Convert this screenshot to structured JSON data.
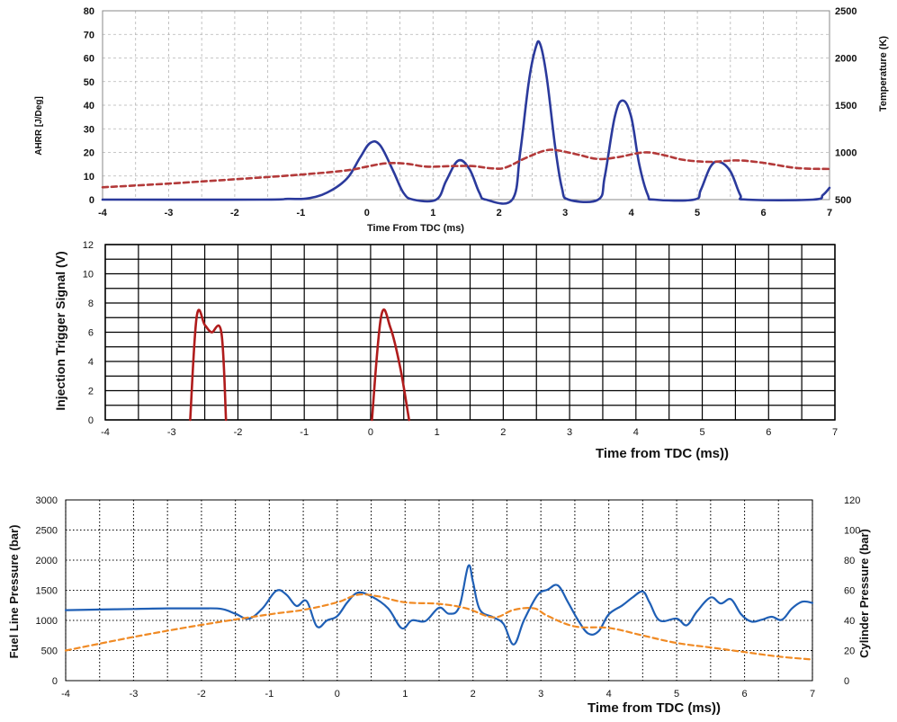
{
  "chart_data": [
    {
      "type": "line",
      "title": "",
      "xlabel": "Time From TDC  (ms)",
      "ylabel": "AHRR  [J/Deg]",
      "y2label": "Temperature (K)",
      "xlim": [
        -4,
        7
      ],
      "ylim": [
        0,
        80
      ],
      "y2lim": [
        500,
        2500
      ],
      "xticks": [
        "-4",
        "-3",
        "-2",
        "-1",
        "0",
        "1",
        "2",
        "3",
        "4",
        "5",
        "6",
        "7"
      ],
      "yticks": [
        "0",
        "10",
        "20",
        "30",
        "40",
        "50",
        "60",
        "70",
        "80"
      ],
      "y2ticks": [
        "500",
        "1000",
        "1500",
        "2000",
        "2500"
      ],
      "grid": "dashed",
      "series": [
        {
          "axis": "left",
          "color": "#2b3a9c",
          "style": "solid",
          "points": [
            [
              -4,
              0
            ],
            [
              -1.6,
              0
            ],
            [
              -1.2,
              0.3
            ],
            [
              -0.9,
              0.5
            ],
            [
              -0.6,
              3
            ],
            [
              -0.3,
              9
            ],
            [
              -0.1,
              18
            ],
            [
              0.05,
              24
            ],
            [
              0.2,
              23
            ],
            [
              0.4,
              12
            ],
            [
              0.55,
              3
            ],
            [
              0.7,
              0
            ],
            [
              1.05,
              0
            ],
            [
              1.2,
              8
            ],
            [
              1.38,
              16.5
            ],
            [
              1.55,
              13
            ],
            [
              1.7,
              3
            ],
            [
              1.8,
              0
            ],
            [
              2.2,
              0
            ],
            [
              2.32,
              20
            ],
            [
              2.45,
              50
            ],
            [
              2.55,
              64
            ],
            [
              2.62,
              66
            ],
            [
              2.72,
              52
            ],
            [
              2.85,
              22
            ],
            [
              2.95,
              5
            ],
            [
              3.05,
              0
            ],
            [
              3.5,
              0
            ],
            [
              3.6,
              10
            ],
            [
              3.75,
              35
            ],
            [
              3.87,
              42
            ],
            [
              4.0,
              35
            ],
            [
              4.12,
              15
            ],
            [
              4.25,
              2
            ],
            [
              4.35,
              0
            ],
            [
              4.95,
              0
            ],
            [
              5.05,
              4
            ],
            [
              5.2,
              14
            ],
            [
              5.33,
              16
            ],
            [
              5.5,
              12
            ],
            [
              5.65,
              2
            ],
            [
              5.75,
              0
            ],
            [
              6.75,
              0
            ],
            [
              6.9,
              2
            ],
            [
              7,
              5
            ]
          ]
        },
        {
          "axis": "right",
          "color": "#b33a3a",
          "style": "dashed",
          "points": [
            [
              -4,
              630
            ],
            [
              -3,
              670
            ],
            [
              -2,
              715
            ],
            [
              -1,
              765
            ],
            [
              -0.3,
              810
            ],
            [
              0,
              850
            ],
            [
              0.3,
              885
            ],
            [
              0.6,
              880
            ],
            [
              0.9,
              850
            ],
            [
              1.3,
              855
            ],
            [
              1.6,
              855
            ],
            [
              1.9,
              830
            ],
            [
              2.1,
              840
            ],
            [
              2.4,
              940
            ],
            [
              2.7,
              1020
            ],
            [
              2.9,
              1020
            ],
            [
              3.2,
              975
            ],
            [
              3.5,
              930
            ],
            [
              3.8,
              950
            ],
            [
              4.2,
              1000
            ],
            [
              4.5,
              970
            ],
            [
              4.8,
              920
            ],
            [
              5.2,
              900
            ],
            [
              5.6,
              915
            ],
            [
              6.0,
              890
            ],
            [
              6.5,
              835
            ],
            [
              7,
              825
            ]
          ]
        }
      ]
    },
    {
      "type": "line",
      "title": "",
      "xlabel": "Time from TDC  (ms))",
      "ylabel": "Injection Trigger Signal (V)",
      "xlim": [
        -4,
        7
      ],
      "ylim": [
        0,
        12
      ],
      "xticks": [
        "-4",
        "-3",
        "-2",
        "-1",
        "0",
        "1",
        "2",
        "3",
        "4",
        "5",
        "6",
        "7"
      ],
      "yticks": [
        "0",
        "2",
        "4",
        "6",
        "8",
        "10",
        "12"
      ],
      "grid": "solid",
      "series": [
        {
          "color": "#b01c1c",
          "style": "solid",
          "points": [
            [
              -2.72,
              0
            ],
            [
              -2.62,
              7.1
            ],
            [
              -2.5,
              6.5
            ],
            [
              -2.4,
              6.0
            ],
            [
              -2.25,
              6.0
            ],
            [
              -2.18,
              0
            ]
          ]
        },
        {
          "color": "#b01c1c",
          "style": "solid",
          "points": [
            [
              0.02,
              0
            ],
            [
              0.16,
              7.1
            ],
            [
              0.3,
              6.3
            ],
            [
              0.45,
              3.5
            ],
            [
              0.58,
              0
            ]
          ]
        }
      ]
    },
    {
      "type": "line",
      "title": "",
      "xlabel": "Time from TDC  (ms))",
      "ylabel": "Fuel Line Pressure  (bar)",
      "y2label": "Cylinder Pressure  (bar)",
      "xlim": [
        -4,
        7
      ],
      "ylim": [
        0,
        3000
      ],
      "y2lim": [
        0,
        120
      ],
      "xticks": [
        "-4",
        "-3",
        "-2",
        "-1",
        "0",
        "1",
        "2",
        "3",
        "4",
        "5",
        "6",
        "7"
      ],
      "yticks": [
        "0",
        "500",
        "1000",
        "1500",
        "2000",
        "2500",
        "3000"
      ],
      "y2ticks": [
        "0",
        "20",
        "40",
        "60",
        "80",
        "100",
        "120"
      ],
      "grid": "dotted",
      "series": [
        {
          "axis": "left",
          "color": "#1f5fb5",
          "style": "solid",
          "points": [
            [
              -4,
              1170
            ],
            [
              -3.5,
              1180
            ],
            [
              -3,
              1190
            ],
            [
              -2.5,
              1200
            ],
            [
              -2,
              1200
            ],
            [
              -1.7,
              1190
            ],
            [
              -1.5,
              1110
            ],
            [
              -1.3,
              1030
            ],
            [
              -1.1,
              1200
            ],
            [
              -0.9,
              1490
            ],
            [
              -0.75,
              1430
            ],
            [
              -0.6,
              1240
            ],
            [
              -0.45,
              1320
            ],
            [
              -0.3,
              900
            ],
            [
              -0.15,
              1000
            ],
            [
              0,
              1070
            ],
            [
              0.15,
              1300
            ],
            [
              0.3,
              1460
            ],
            [
              0.5,
              1400
            ],
            [
              0.75,
              1200
            ],
            [
              0.95,
              870
            ],
            [
              1.1,
              1000
            ],
            [
              1.3,
              990
            ],
            [
              1.5,
              1210
            ],
            [
              1.65,
              1110
            ],
            [
              1.8,
              1230
            ],
            [
              1.93,
              1900
            ],
            [
              2.0,
              1640
            ],
            [
              2.1,
              1180
            ],
            [
              2.3,
              1050
            ],
            [
              2.45,
              940
            ],
            [
              2.6,
              600
            ],
            [
              2.75,
              1000
            ],
            [
              2.95,
              1420
            ],
            [
              3.1,
              1510
            ],
            [
              3.25,
              1580
            ],
            [
              3.4,
              1300
            ],
            [
              3.55,
              1000
            ],
            [
              3.7,
              780
            ],
            [
              3.85,
              820
            ],
            [
              4.0,
              1100
            ],
            [
              4.2,
              1250
            ],
            [
              4.35,
              1380
            ],
            [
              4.5,
              1480
            ],
            [
              4.6,
              1300
            ],
            [
              4.75,
              1000
            ],
            [
              5.0,
              1030
            ],
            [
              5.15,
              920
            ],
            [
              5.3,
              1150
            ],
            [
              5.5,
              1380
            ],
            [
              5.65,
              1280
            ],
            [
              5.8,
              1350
            ],
            [
              5.95,
              1100
            ],
            [
              6.1,
              980
            ],
            [
              6.25,
              1010
            ],
            [
              6.4,
              1060
            ],
            [
              6.55,
              1010
            ],
            [
              6.7,
              1200
            ],
            [
              6.85,
              1310
            ],
            [
              7,
              1290
            ]
          ]
        },
        {
          "axis": "right",
          "color": "#f08a24",
          "style": "dashed",
          "points": [
            [
              -4,
              20
            ],
            [
              -3,
              29
            ],
            [
              -2,
              37
            ],
            [
              -1,
              44
            ],
            [
              -0.5,
              47
            ],
            [
              0,
              52
            ],
            [
              0.3,
              57
            ],
            [
              0.6,
              56
            ],
            [
              1,
              52
            ],
            [
              1.5,
              51
            ],
            [
              1.9,
              48
            ],
            [
              2.3,
              42
            ],
            [
              2.6,
              47
            ],
            [
              2.9,
              48
            ],
            [
              3.1,
              43
            ],
            [
              3.5,
              36
            ],
            [
              4,
              35
            ],
            [
              4.5,
              30
            ],
            [
              5,
              25
            ],
            [
              5.5,
              22
            ],
            [
              6,
              19
            ],
            [
              6.5,
              16
            ],
            [
              7,
              14
            ]
          ]
        }
      ]
    }
  ]
}
